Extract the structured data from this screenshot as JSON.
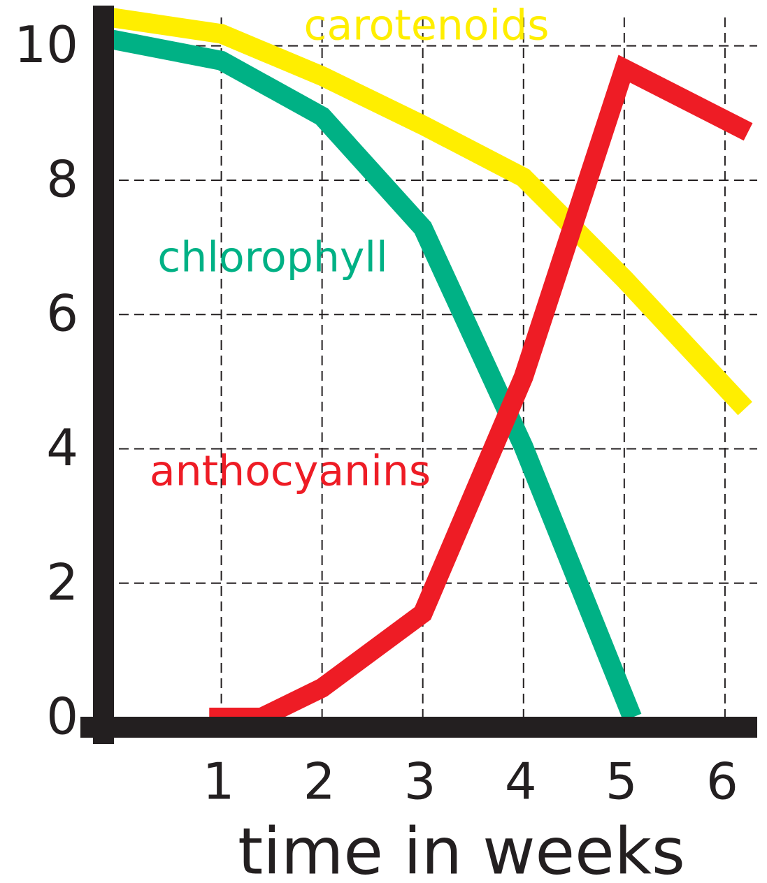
{
  "chart_data": {
    "type": "line",
    "xlabel": "time in weeks",
    "xlim": [
      -0.17,
      6.32
    ],
    "ylim": [
      0,
      10.6
    ],
    "xticks": [
      1,
      2,
      3,
      4,
      5,
      6
    ],
    "yticks": [
      0,
      2,
      4,
      6,
      8,
      10
    ],
    "grid": true,
    "series": [
      {
        "name": "carotenoids",
        "color": "#ffee00",
        "x": [
          -0.17,
          1,
          2,
          3,
          4,
          5,
          6.2
        ],
        "values": [
          10.44,
          10.18,
          9.55,
          8.82,
          8.04,
          6.53,
          4.6
        ]
      },
      {
        "name": "chlorophyll",
        "color": "#00b185",
        "x": [
          -0.17,
          1,
          2,
          3,
          4,
          5.08
        ],
        "values": [
          10.12,
          9.78,
          8.95,
          7.29,
          4.03,
          0
        ]
      },
      {
        "name": "anthocyanins",
        "color": "#ee1c25",
        "x": [
          0.88,
          1.4,
          2,
          3,
          4,
          5,
          6.23
        ],
        "values": [
          0,
          0,
          0.44,
          1.55,
          5.07,
          9.66,
          8.72
        ]
      }
    ]
  }
}
